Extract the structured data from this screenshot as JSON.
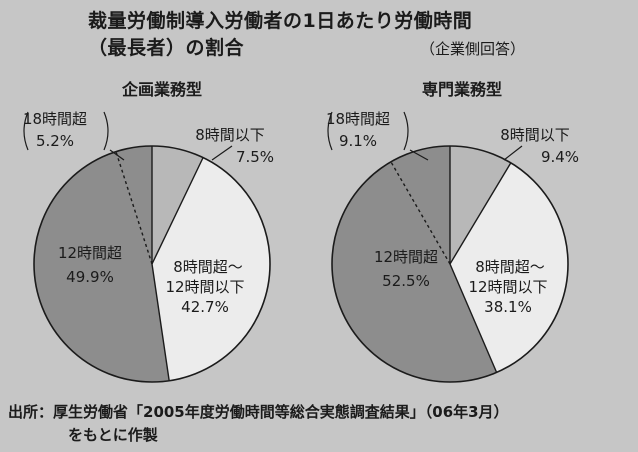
{
  "title_line1": "裁量労働制導入労働者の1日あたり労働時間",
  "title_line2": "（最長者）の割合",
  "respondent_note": "（企業側回答）",
  "source_line1": "出所：厚生労働省「2005年度労働時間等総合実態調査結果」（06年3月）",
  "source_line2": "をもとに作製",
  "chart_data": [
    {
      "type": "pie",
      "title": "企画業務型",
      "start_angle_deg": 0,
      "direction": "clockwise",
      "slices": [
        {
          "label": "8時間以下",
          "value": 7.5,
          "value_text": "7.5%",
          "color": "#b8b8b8",
          "label_placement": "outside"
        },
        {
          "label": "8時間超～12時間以下",
          "value": 42.7,
          "value_text": "42.7%",
          "color": "#ececec",
          "label_placement": "inside"
        },
        {
          "label": "12時間超",
          "value": 49.9,
          "value_text": "49.9%",
          "color": "#8d8d8d",
          "label_placement": "inside"
        },
        {
          "label": "18時間超",
          "value": 5.2,
          "value_text": "5.2%",
          "color": "#8d8d8d",
          "label_placement": "outside",
          "bracketed": true
        }
      ]
    },
    {
      "type": "pie",
      "title": "専門業務型",
      "start_angle_deg": 0,
      "direction": "clockwise",
      "slices": [
        {
          "label": "8時間以下",
          "value": 9.4,
          "value_text": "9.4%",
          "color": "#b8b8b8",
          "label_placement": "outside"
        },
        {
          "label": "8時間超～12時間以下",
          "value": 38.1,
          "value_text": "38.1%",
          "color": "#ececec",
          "label_placement": "inside"
        },
        {
          "label": "12時間超",
          "value": 52.5,
          "value_text": "52.5%",
          "color": "#8d8d8d",
          "label_placement": "inside"
        },
        {
          "label": "18時間超",
          "value": 9.1,
          "value_text": "9.1%",
          "color": "#8d8d8d",
          "label_placement": "outside",
          "bracketed": true
        }
      ]
    }
  ]
}
